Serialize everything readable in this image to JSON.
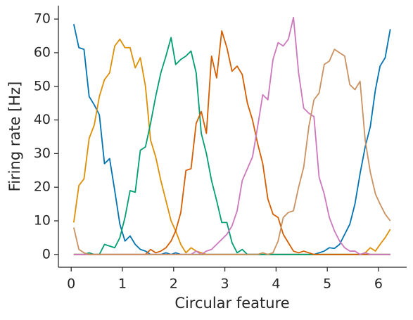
{
  "chart_data": {
    "type": "line",
    "xlabel": "Circular feature",
    "ylabel": "Firing rate [Hz]",
    "x": [
      0.05,
      0.15,
      0.25,
      0.35,
      0.45,
      0.55,
      0.65,
      0.75,
      0.85,
      0.95,
      1.05,
      1.15,
      1.25,
      1.35,
      1.45,
      1.55,
      1.65,
      1.75,
      1.85,
      1.95,
      2.04,
      2.14,
      2.24,
      2.34,
      2.44,
      2.54,
      2.64,
      2.74,
      2.84,
      2.94,
      3.04,
      3.14,
      3.24,
      3.34,
      3.44,
      3.54,
      3.64,
      3.74,
      3.84,
      3.94,
      4.04,
      4.14,
      4.24,
      4.34,
      4.44,
      4.54,
      4.64,
      4.74,
      4.84,
      4.94,
      5.04,
      5.14,
      5.24,
      5.34,
      5.44,
      5.54,
      5.64,
      5.74,
      5.84,
      5.94,
      6.03,
      6.13,
      6.23
    ],
    "series": [
      {
        "color": "#0173b2",
        "values": [
          68.5,
          61.5,
          61,
          47,
          44.5,
          41.5,
          27,
          28.5,
          19,
          9,
          4,
          5.5,
          3,
          1.5,
          1,
          0,
          0,
          0,
          0.5,
          0,
          0.5,
          0,
          0,
          0,
          0,
          0,
          0,
          0,
          0,
          0,
          0,
          0,
          0,
          0,
          0,
          0,
          0,
          0,
          0,
          0,
          0,
          0,
          0,
          0,
          0,
          0,
          0,
          0,
          0.5,
          1,
          2,
          1.8,
          3,
          6,
          9,
          15,
          24,
          32,
          38,
          49,
          56,
          58.5,
          67
        ]
      },
      {
        "color": "#de8f05",
        "values": [
          9.5,
          20.5,
          22.5,
          34.5,
          38.5,
          47,
          52,
          54,
          62,
          64,
          61.5,
          61.5,
          55.5,
          58.5,
          50,
          34,
          29,
          22,
          16,
          10,
          7,
          3,
          0.5,
          2,
          1,
          0.5,
          0,
          0,
          0,
          0,
          0,
          0,
          0,
          0,
          0,
          0,
          0,
          0,
          0,
          0,
          0,
          0,
          0,
          0,
          0,
          0,
          0,
          0,
          0,
          0,
          0,
          0,
          0,
          0,
          0,
          0,
          0,
          0.5,
          2,
          1,
          3,
          5,
          7.5
        ]
      },
      {
        "color": "#029e73",
        "values": [
          0,
          0,
          0,
          0.5,
          0,
          0,
          3,
          2.5,
          2,
          5,
          11,
          19,
          18.5,
          31,
          32,
          39,
          47,
          54,
          59,
          64.5,
          56.5,
          58,
          59,
          60.5,
          54,
          36,
          30,
          22,
          16,
          9.5,
          9.5,
          3.5,
          0.5,
          1.5,
          0,
          0,
          0,
          0,
          0,
          0,
          0,
          0,
          0,
          0,
          0,
          0,
          0,
          0,
          0,
          0,
          0,
          0,
          0,
          0,
          0,
          0,
          0,
          0,
          0,
          0,
          0,
          0,
          0
        ]
      },
      {
        "color": "#d55e00",
        "values": [
          0,
          0,
          0,
          0,
          0,
          0,
          0,
          0,
          0,
          0,
          0,
          0,
          0,
          0,
          0,
          1.5,
          0.5,
          1,
          2,
          4,
          7,
          12.5,
          25,
          25.5,
          39,
          42.5,
          36,
          59,
          52.5,
          66.5,
          61.5,
          54.5,
          56,
          53.5,
          45,
          40,
          33,
          27,
          16.5,
          12,
          11,
          6,
          3.5,
          1,
          0.5,
          1,
          0.5,
          0,
          0,
          0,
          0,
          0,
          0,
          0,
          0,
          0,
          0,
          0,
          0,
          0,
          0,
          0,
          0
        ]
      },
      {
        "color": "#cc78bc",
        "values": [
          0,
          0,
          0,
          0,
          0,
          0,
          0,
          0,
          0,
          0,
          0,
          0,
          0,
          0,
          0,
          0,
          0,
          0,
          0,
          0,
          0,
          0,
          0,
          0,
          1,
          0,
          1,
          1.5,
          3,
          4.5,
          6,
          8.5,
          13,
          22,
          25.5,
          29,
          38,
          47.5,
          46,
          58,
          63,
          62,
          64,
          70.5,
          54,
          43.5,
          42,
          41,
          23,
          18,
          11,
          7,
          4,
          2,
          1,
          1,
          0,
          0.5,
          0,
          0,
          0,
          0,
          0
        ]
      },
      {
        "color": "#ca9161",
        "values": [
          8,
          1.5,
          0.5,
          0,
          0,
          0,
          0,
          0,
          0,
          0,
          0,
          0,
          0,
          0,
          0,
          0,
          0,
          0,
          0,
          0,
          0,
          0,
          0,
          0,
          0,
          0,
          0,
          0,
          0,
          0,
          0,
          0,
          0,
          0,
          0,
          0,
          0,
          0.5,
          0,
          0.5,
          4,
          11,
          12.5,
          13,
          20,
          26,
          38,
          46,
          48,
          56.5,
          57.5,
          61,
          60,
          59,
          50.5,
          49,
          51.5,
          34,
          24.5,
          18,
          15,
          12,
          10
        ]
      }
    ],
    "xlim": [
      -0.25,
      6.55
    ],
    "ylim": [
      -3.8,
      74
    ],
    "xticks": [
      0,
      1,
      2,
      3,
      4,
      5,
      6
    ],
    "yticks": [
      0,
      10,
      20,
      30,
      40,
      50,
      60,
      70
    ]
  }
}
